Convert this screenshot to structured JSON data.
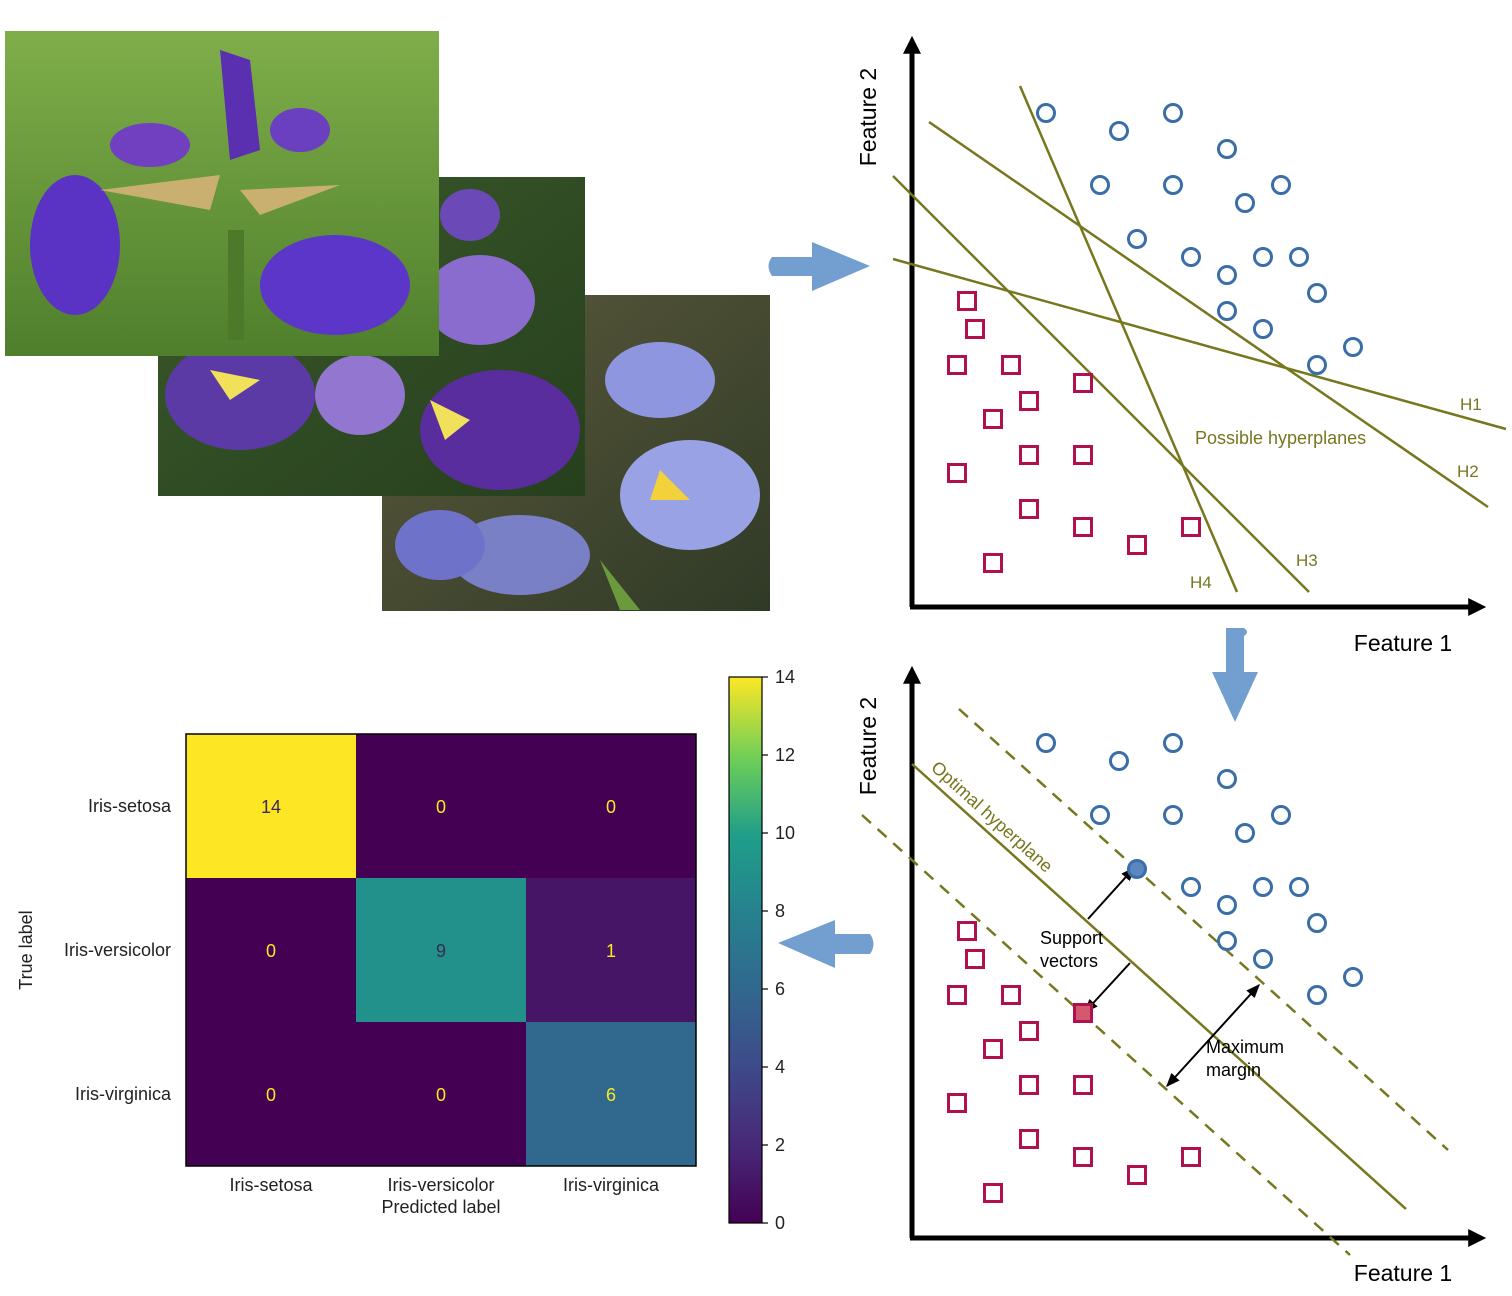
{
  "colors": {
    "axis": "#000000",
    "hyperplane": "#77771f",
    "circle_class": "#3a6ea8",
    "square_class": "#b0104e",
    "flow_arrow": "#729fcf",
    "heat_low": "#440154",
    "heat_high": "#fde725"
  },
  "photos": {
    "icons": [
      "iris-photo-1",
      "iris-photo-2",
      "iris-photo-3"
    ]
  },
  "panel_hyperplanes": {
    "xlabel": "Feature 1",
    "ylabel": "Feature 2",
    "caption": "Possible hyperplanes",
    "lines": [
      "H1",
      "H2",
      "H3",
      "H4"
    ]
  },
  "panel_optimal": {
    "xlabel": "Feature 1",
    "ylabel": "Feature 2",
    "optimal_label": "Optimal hyperplane",
    "support_label_1": "Support",
    "support_label_2": "vectors",
    "margin_label_1": "Maximum",
    "margin_label_2": "margin"
  },
  "chart_data": {
    "type": "heatmap",
    "xlabel": "Predicted label",
    "ylabel": "True label",
    "x_categories": [
      "Iris-setosa",
      "Iris-versicolor",
      "Iris-virginica"
    ],
    "y_categories": [
      "Iris-setosa",
      "Iris-versicolor",
      "Iris-virginica"
    ],
    "values": [
      [
        14,
        0,
        0
      ],
      [
        0,
        9,
        1
      ],
      [
        0,
        0,
        6
      ]
    ],
    "colorbar": {
      "range": [
        0,
        14
      ],
      "ticks": [
        "0",
        "2",
        "4",
        "6",
        "8",
        "10",
        "12",
        "14"
      ]
    }
  }
}
